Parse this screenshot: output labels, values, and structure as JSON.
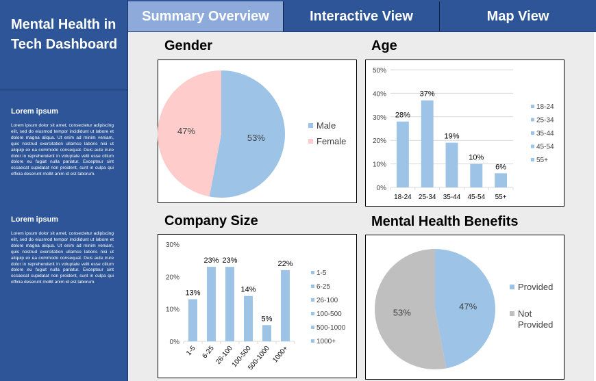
{
  "sidebar": {
    "title": "Mental Health in Tech Dashboard",
    "sections": [
      {
        "heading": "Lorem ipsum",
        "body": "Lorem ipsum dolor sit amet, consectetur adipiscing elit, sed do eiusmod tempor incididunt ut labore et dolore magna aliqua. Ut enim ad minim veniam, quis nostrud exercitation ullamco laboris nisi ut aliquip ex ea commodo consequat. Duis aute irure dolor in reprehenderit in voluptate velit esse cillum dolore eu fugiat nulla pariatur. Excepteur sint occaecat cupidatat non proident, sunt in culpa qui officia deserunt mollit anim id est laborum."
      },
      {
        "heading": "Lorem ipsum",
        "body": "Lorem ipsum dolor sit amet, consectetur adipiscing elit, sed do eiusmod tempor incididunt ut labore et dolore magna aliqua. Ut enim ad minim veniam, quis nostrud exercitation ullamco laboris nisi ut aliquip ex ea commodo consequat. Duis aute irure dolor in reprehenderit in voluptate velit esse cillum dolore eu fugiat nulla pariatur. Excepteur sint occaecat cupidatat non proident, sunt in culpa qui officia deserunt mollit anim id est laborum."
      }
    ]
  },
  "tabs": [
    {
      "label": "Summary Overview",
      "active": true
    },
    {
      "label": "Interactive View",
      "active": false
    },
    {
      "label": "Map View",
      "active": false
    }
  ],
  "colors": {
    "blue": "#9dc3e6",
    "pink": "#ffcccc",
    "gray": "#bfbfbf",
    "axis": "#d9d9d9"
  },
  "chart_data": [
    {
      "id": "gender",
      "type": "pie",
      "title": "Gender",
      "labels": [
        "Male",
        "Female"
      ],
      "values": [
        53,
        47
      ],
      "value_labels": [
        "53%",
        "47%"
      ],
      "colors": [
        "#9dc3e6",
        "#ffcccc"
      ],
      "legend": "right"
    },
    {
      "id": "age",
      "type": "bar",
      "title": "Age",
      "categories": [
        "18-24",
        "25-34",
        "35-44",
        "45-54",
        "55+"
      ],
      "values": [
        28,
        37,
        19,
        10,
        6
      ],
      "value_labels": [
        "28%",
        "37%",
        "19%",
        "10%",
        "6%"
      ],
      "ylim": [
        0,
        50
      ],
      "yticks": [
        "0%",
        "10%",
        "20%",
        "30%",
        "40%",
        "50%"
      ],
      "color": "#9dc3e6",
      "grid": true,
      "legend": "right"
    },
    {
      "id": "company_size",
      "type": "bar",
      "title": "Company Size",
      "categories": [
        "1-5",
        "6-25",
        "26-100",
        "100-500",
        "500-1000",
        "1000+"
      ],
      "values": [
        13,
        23,
        23,
        14,
        5,
        22
      ],
      "value_labels": [
        "13%",
        "23%",
        "23%",
        "14%",
        "5%",
        "22%"
      ],
      "ylim": [
        0,
        30
      ],
      "yticks": [
        "0%",
        "10%",
        "20%",
        "30%"
      ],
      "color": "#9dc3e6",
      "grid": false,
      "legend": "right"
    },
    {
      "id": "benefits",
      "type": "pie",
      "title": "Mental Health Benefits",
      "labels": [
        "Provided",
        "Not Provided"
      ],
      "values": [
        47,
        53
      ],
      "value_labels": [
        "47%",
        "53%"
      ],
      "colors": [
        "#9dc3e6",
        "#bfbfbf"
      ],
      "legend": "right"
    }
  ]
}
